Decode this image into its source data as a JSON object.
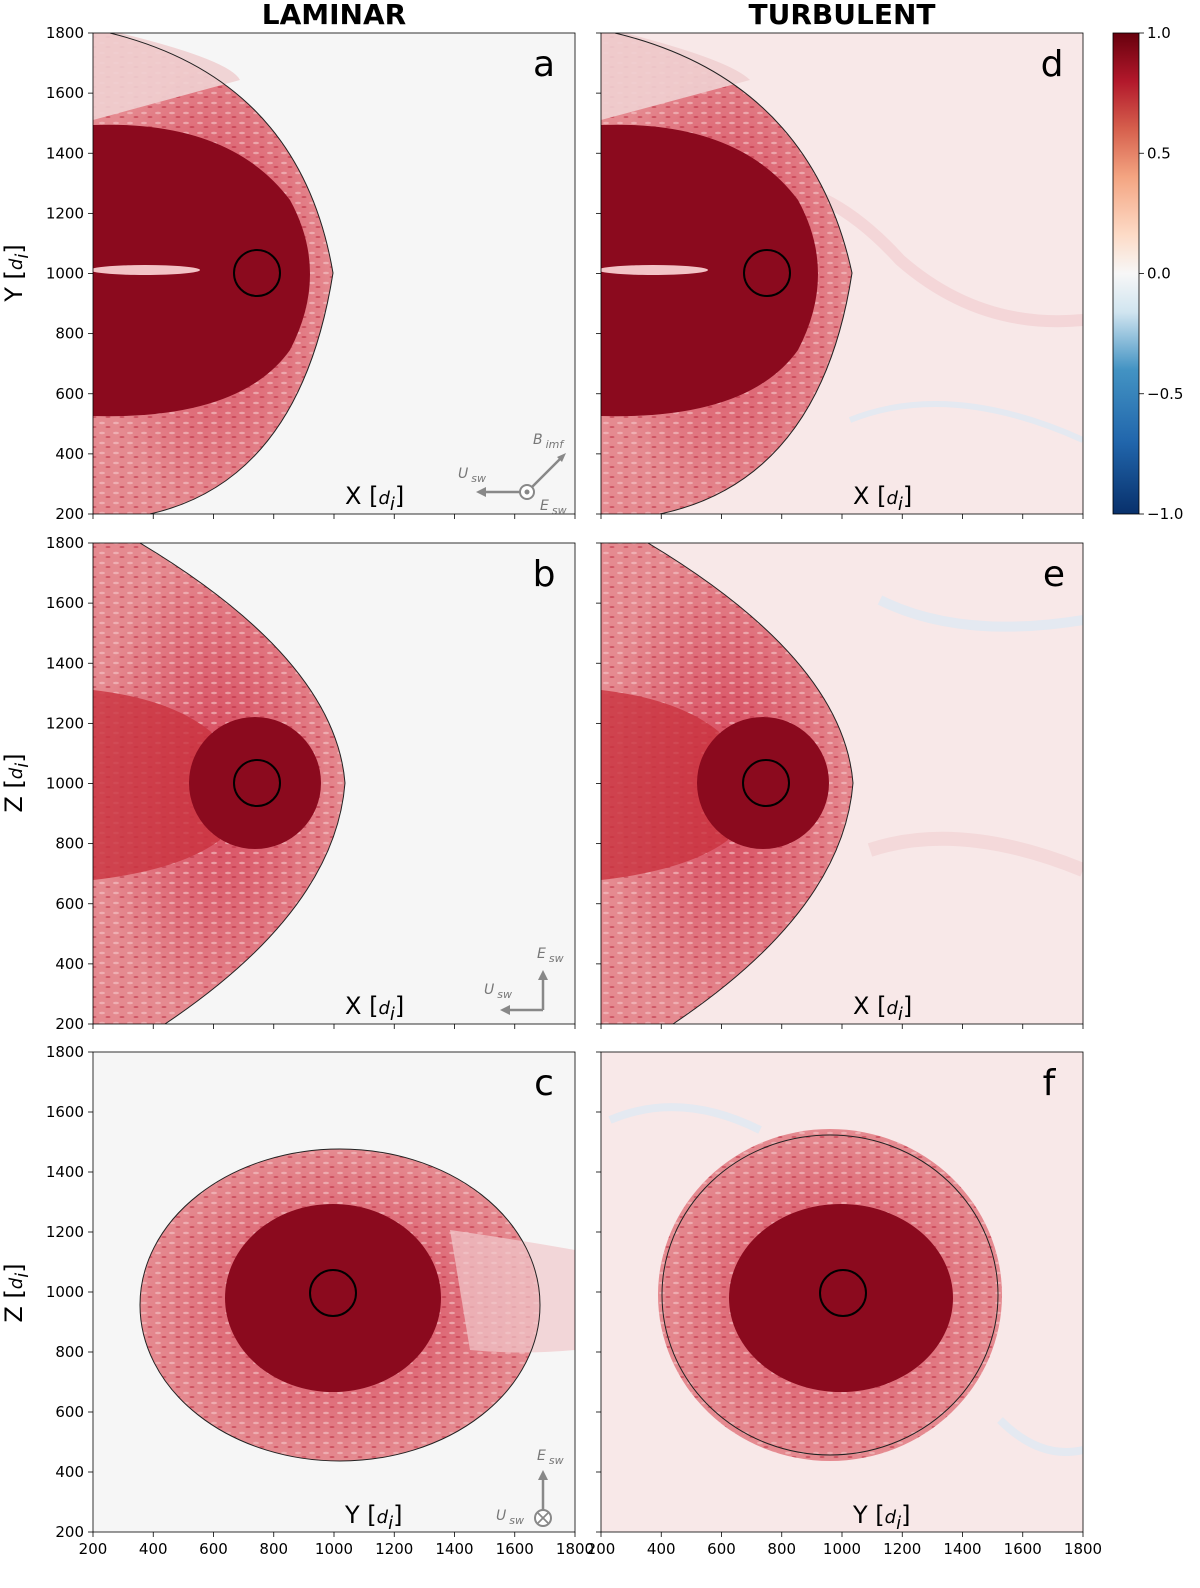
{
  "column_titles": [
    "LAMINAR",
    "TURBULENT"
  ],
  "chart_data": {
    "type": "heatmap",
    "x_ticks": [
      200,
      400,
      600,
      800,
      1000,
      1200,
      1400,
      1600,
      1800
    ],
    "y_ticks": [
      200,
      400,
      600,
      800,
      1000,
      1200,
      1400,
      1600,
      1800
    ],
    "xlim": [
      200,
      1800
    ],
    "ylim": [
      200,
      1800
    ],
    "colorbar": {
      "range": [
        -1.0,
        1.0
      ],
      "ticks": [
        "1.0",
        "0.5",
        "0.0",
        "−0.5",
        "−1.0"
      ],
      "colors": {
        "min": "#08306b",
        "mid": "#f7f7f7",
        "max": "#67000d"
      }
    },
    "panels": [
      {
        "letter": "a",
        "regime": "LAMINAR",
        "plane": "XY",
        "ylabel_var": "Y",
        "xlabel_var": "X",
        "planet_center": [
          750,
          1000
        ],
        "planet_radius": 75
      },
      {
        "letter": "b",
        "regime": "LAMINAR",
        "plane": "XZ",
        "ylabel_var": "Z",
        "xlabel_var": "X",
        "planet_center": [
          750,
          1000
        ],
        "planet_radius": 75
      },
      {
        "letter": "c",
        "regime": "LAMINAR",
        "plane": "YZ",
        "ylabel_var": "Z",
        "xlabel_var": "Y",
        "planet_center": [
          1000,
          1000
        ],
        "planet_radius": 75
      },
      {
        "letter": "d",
        "regime": "TURBULENT",
        "plane": "XY",
        "ylabel_var": "",
        "xlabel_var": "X",
        "planet_center": [
          750,
          1000
        ],
        "planet_radius": 75
      },
      {
        "letter": "e",
        "regime": "TURBULENT",
        "plane": "XZ",
        "ylabel_var": "",
        "xlabel_var": "X",
        "planet_center": [
          750,
          1000
        ],
        "planet_radius": 75
      },
      {
        "letter": "f",
        "regime": "TURBULENT",
        "plane": "YZ",
        "ylabel_var": "",
        "xlabel_var": "Y",
        "planet_center": [
          1000,
          1000
        ],
        "planet_radius": 75
      }
    ]
  },
  "unit_sub": "i",
  "unit_main": "d",
  "indicators": {
    "a": {
      "u": "U",
      "u_sub": "sw",
      "b": "B",
      "b_sub": "imf",
      "e": "E",
      "e_sub": "sw"
    },
    "b": {
      "u": "U",
      "u_sub": "sw",
      "e": "E",
      "e_sub": "sw"
    },
    "c": {
      "u": "U",
      "u_sub": "sw",
      "e": "E",
      "e_sub": "sw"
    }
  }
}
